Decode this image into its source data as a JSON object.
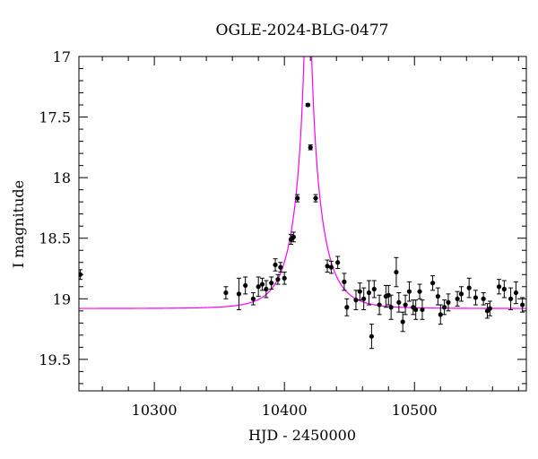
{
  "chart_data": {
    "type": "scatter",
    "title": "OGLE-2024-BLG-0477",
    "xlabel": "HJD - 2450000",
    "ylabel": "I magnitude",
    "xlim": [
      10242,
      10586
    ],
    "ylim": [
      19.76,
      17.0
    ],
    "y_inverted": true,
    "xticks": [
      10300,
      10400,
      10500
    ],
    "xtick_labels": [
      "10300",
      "10400",
      "10500"
    ],
    "yticks": [
      17.0,
      17.5,
      18.0,
      18.5,
      19.0,
      19.5
    ],
    "ytick_labels": [
      "17",
      "17.5",
      "18",
      "18.5",
      "19",
      "19.5"
    ],
    "grid": false,
    "legend": "none",
    "colors": {
      "points": "#000000",
      "model": "#ff00ff"
    },
    "series": [
      {
        "kind": "points",
        "x": [
          10243,
          10355,
          10365,
          10370,
          10376,
          10380,
          10383,
          10386,
          10390,
          10393,
          10395,
          10397,
          10400,
          10405,
          10407,
          10410,
          10418,
          10420,
          10424,
          10433,
          10436,
          10441,
          10446,
          10448,
          10455,
          10458,
          10461,
          10465,
          10467,
          10469,
          10473,
          10478,
          10480,
          10482,
          10486,
          10488,
          10491,
          10493,
          10496,
          10499,
          10501,
          10504,
          10506,
          10514,
          10518,
          10520,
          10523,
          10526,
          10533,
          10536,
          10542,
          10547,
          10553,
          10556,
          10558,
          10565,
          10569,
          10574,
          10578,
          10583
        ],
        "y": [
          18.8,
          18.95,
          18.96,
          18.89,
          19.0,
          18.9,
          18.88,
          18.92,
          18.87,
          18.72,
          18.84,
          18.74,
          18.83,
          18.51,
          18.49,
          18.17,
          17.4,
          17.75,
          18.17,
          18.73,
          18.74,
          18.7,
          18.86,
          19.07,
          19.01,
          18.94,
          19.0,
          18.95,
          19.31,
          18.92,
          19.05,
          18.98,
          18.97,
          19.07,
          18.78,
          19.03,
          19.19,
          19.05,
          18.94,
          19.07,
          19.09,
          18.94,
          19.09,
          18.87,
          18.98,
          19.13,
          19.07,
          19.03,
          19.0,
          18.96,
          18.91,
          18.99,
          19.0,
          19.1,
          19.08,
          18.9,
          18.92,
          19.0,
          18.95,
          19.05
        ],
        "yerr": [
          0.04,
          0.05,
          0.13,
          0.07,
          0.05,
          0.08,
          0.05,
          0.07,
          0.05,
          0.05,
          0.04,
          0.04,
          0.05,
          0.04,
          0.04,
          0.03,
          0.01,
          0.02,
          0.03,
          0.05,
          0.05,
          0.05,
          0.07,
          0.07,
          0.08,
          0.07,
          0.09,
          0.1,
          0.1,
          0.07,
          0.08,
          0.09,
          0.08,
          0.1,
          0.12,
          0.08,
          0.08,
          0.08,
          0.08,
          0.06,
          0.08,
          0.06,
          0.08,
          0.06,
          0.07,
          0.08,
          0.06,
          0.07,
          0.06,
          0.06,
          0.08,
          0.06,
          0.05,
          0.06,
          0.06,
          0.06,
          0.07,
          0.09,
          0.09,
          0.06
        ]
      },
      {
        "kind": "model",
        "baseline_mag": 19.08,
        "t0": 10418,
        "u0": 0.0172,
        "tE": 20
      }
    ]
  }
}
